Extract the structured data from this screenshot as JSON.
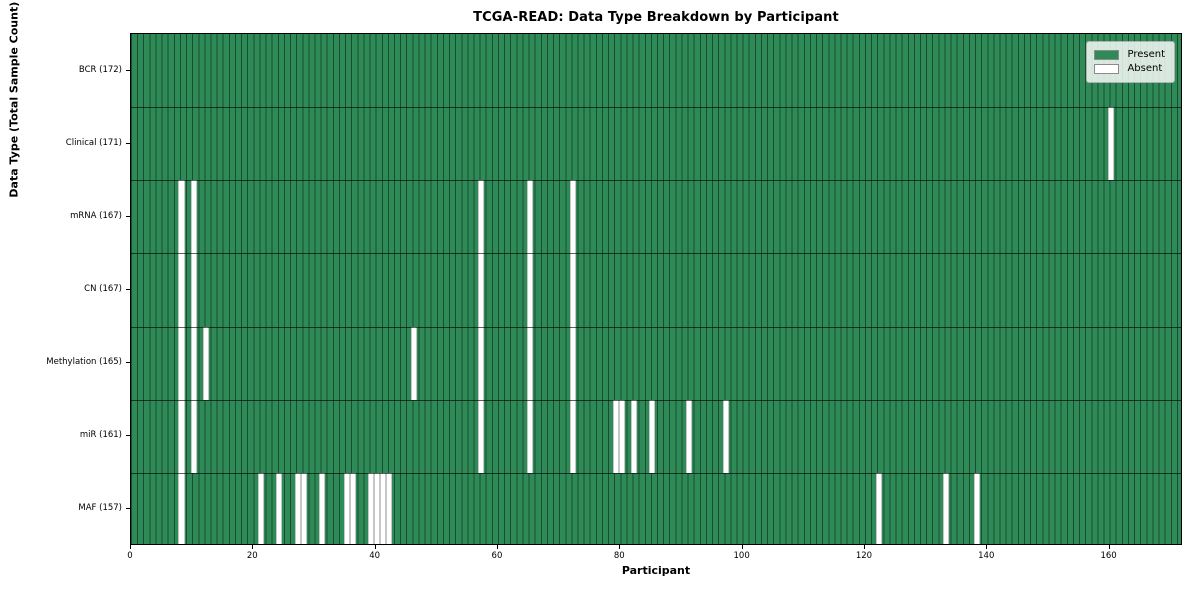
{
  "title": "TCGA-READ: Data Type Breakdown by Participant",
  "axes": {
    "xlabel": "Participant",
    "ylabel": "Data Type (Total Sample Count)"
  },
  "legend": {
    "present_label": "Present",
    "absent_label": "Absent"
  },
  "colors": {
    "present": "#2e8b57",
    "absent": "#ffffff",
    "cell_line": "rgba(0,0,0,0.45)",
    "row_line": "rgba(0,0,0,0.62)"
  },
  "chart_data": {
    "type": "heatmap",
    "title": "TCGA-READ: Data Type Breakdown by Participant",
    "xlabel": "Participant",
    "ylabel": "Data Type (Total Sample Count)",
    "legend_entries": [
      "Present",
      "Absent"
    ],
    "legend_position": "upper right",
    "n_participants": 172,
    "x_ticks": [
      0,
      20,
      40,
      60,
      80,
      100,
      120,
      140,
      160
    ],
    "xlim": [
      0,
      172
    ],
    "grid": "cell-borders",
    "rows": [
      {
        "label": "BCR (172)",
        "data_type": "BCR",
        "total": 172,
        "absent_participants": []
      },
      {
        "label": "Clinical (171)",
        "data_type": "Clinical",
        "total": 171,
        "absent_participants": [
          160
        ]
      },
      {
        "label": "mRNA (167)",
        "data_type": "mRNA",
        "total": 167,
        "absent_participants": [
          8,
          10,
          57,
          65,
          72
        ]
      },
      {
        "label": "CN (167)",
        "data_type": "CN",
        "total": 167,
        "absent_participants": [
          8,
          10,
          57,
          65,
          72
        ]
      },
      {
        "label": "Methylation (165)",
        "data_type": "Methylation",
        "total": 165,
        "absent_participants": [
          8,
          10,
          12,
          46,
          57,
          65,
          72
        ]
      },
      {
        "label": "miR (161)",
        "data_type": "miR",
        "total": 161,
        "absent_participants": [
          8,
          10,
          57,
          65,
          72,
          79,
          80,
          82,
          85,
          91,
          97
        ]
      },
      {
        "label": "MAF (157)",
        "data_type": "MAF",
        "total": 157,
        "absent_participants": [
          8,
          21,
          24,
          27,
          28,
          31,
          35,
          36,
          39,
          40,
          41,
          42,
          122,
          133,
          138
        ]
      }
    ]
  }
}
